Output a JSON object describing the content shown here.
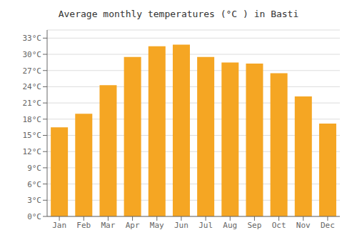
{
  "chart_data": {
    "type": "bar",
    "title": "Average monthly temperatures (°C ) in Basti",
    "categories": [
      "Jan",
      "Feb",
      "Mar",
      "Apr",
      "May",
      "Jun",
      "Jul",
      "Aug",
      "Sep",
      "Oct",
      "Nov",
      "Dec"
    ],
    "values": [
      16.5,
      19.0,
      24.3,
      29.5,
      31.5,
      31.8,
      29.5,
      28.5,
      28.3,
      26.5,
      22.2,
      17.2
    ],
    "color": "#F5A623",
    "ylim": [
      0,
      34.5
    ],
    "yticks": [
      {
        "value": 0,
        "label": "0°C"
      },
      {
        "value": 3,
        "label": "3°C"
      },
      {
        "value": 6,
        "label": "6°C"
      },
      {
        "value": 9,
        "label": "9°C"
      },
      {
        "value": 12,
        "label": "12°C"
      },
      {
        "value": 15,
        "label": "15°C"
      },
      {
        "value": 18,
        "label": "18°C"
      },
      {
        "value": 21,
        "label": "21°C"
      },
      {
        "value": 24,
        "label": "24°C"
      },
      {
        "value": 27,
        "label": "27°C"
      },
      {
        "value": 30,
        "label": "30°C"
      },
      {
        "value": 33,
        "label": "33°C"
      }
    ],
    "grid": true
  }
}
